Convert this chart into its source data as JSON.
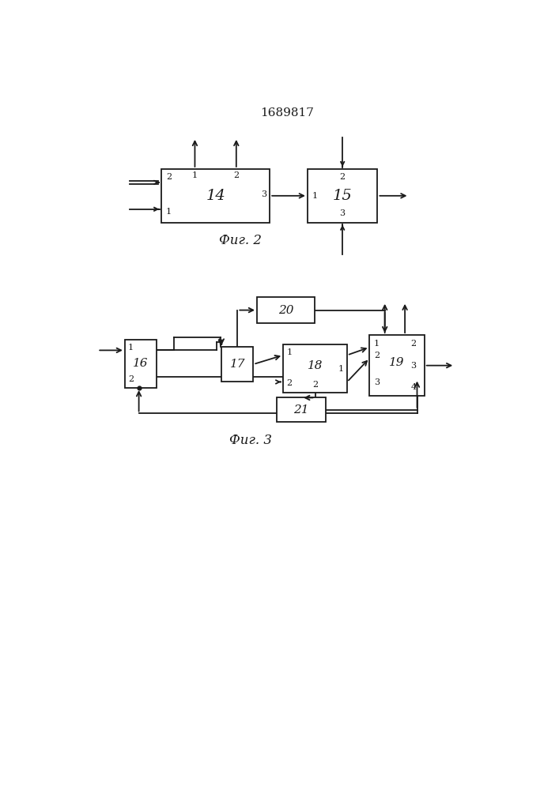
{
  "title": "1689817",
  "fig2_caption": "Фиг. 2",
  "fig3_caption": "Фиг. 3",
  "bg_color": "#ffffff",
  "line_color": "#1a1a1a",
  "line_width": 1.3
}
